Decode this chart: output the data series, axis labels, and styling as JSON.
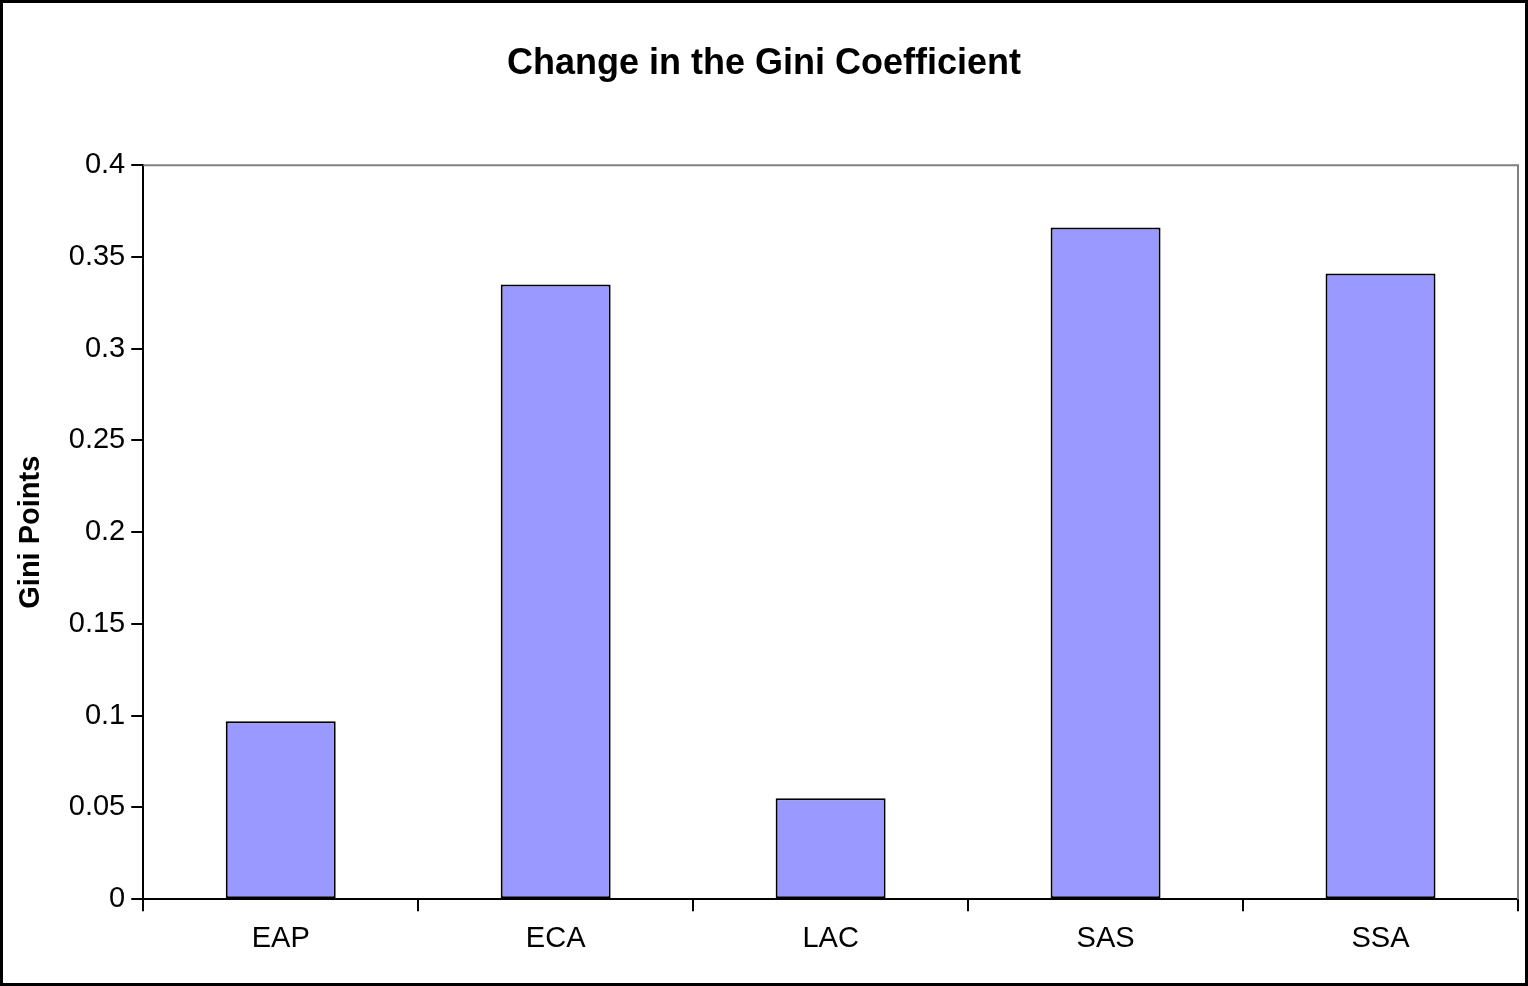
{
  "chart_data": {
    "type": "bar",
    "title": "Change in the Gini Coefficient",
    "ylabel": "Gini Points",
    "categories": [
      "EAP",
      "ECA",
      "LAC",
      "SAS",
      "SSA"
    ],
    "values": [
      0.097,
      0.335,
      0.055,
      0.366,
      0.341
    ],
    "color": "#9999ff",
    "ylim": [
      0,
      0.4
    ],
    "yticks": [
      0,
      0.05,
      0.1,
      0.15,
      0.2,
      0.25,
      0.3,
      0.35,
      0.4
    ],
    "grid": false,
    "legend": false
  }
}
